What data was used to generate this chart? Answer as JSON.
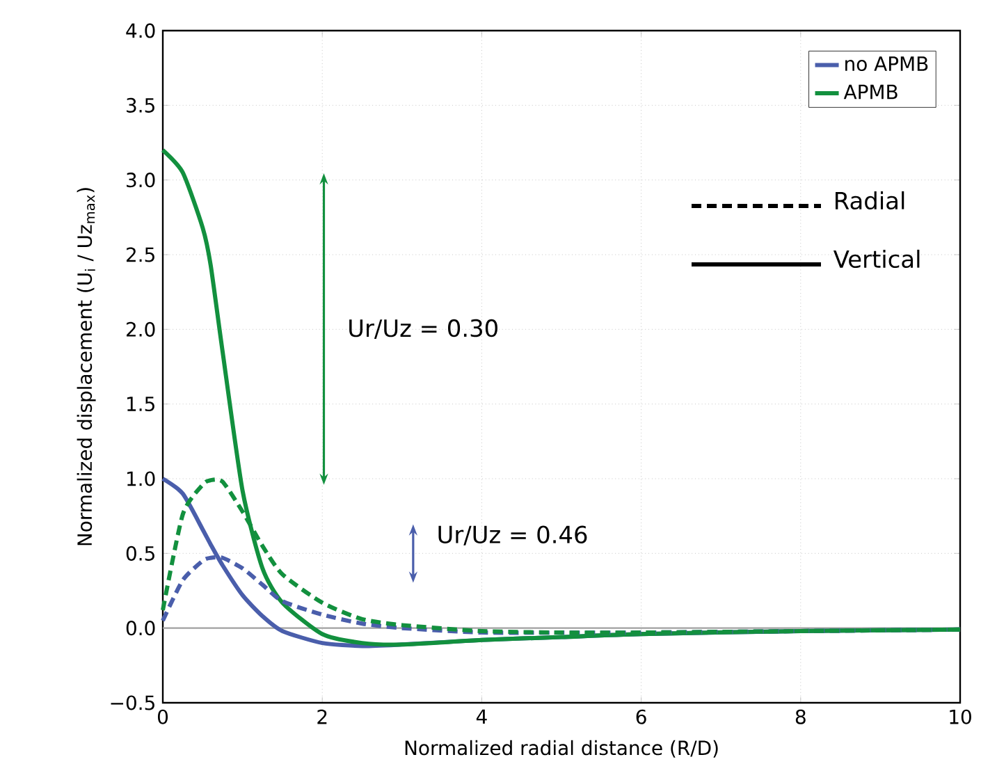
{
  "chart_data": {
    "type": "line",
    "xlabel": "Normalized radial distance (R/D)",
    "ylabel": "Normalized displacement (U$_{i}$ / Uz$_{max}$)",
    "x": [
      0,
      0.25,
      0.5,
      0.6,
      0.75,
      1,
      1.25,
      1.5,
      2,
      2.5,
      3,
      4,
      5,
      6,
      8,
      10
    ],
    "series": [
      {
        "name": "no APMB",
        "color": "#4a5eab",
        "line_style": "solid",
        "values": [
          1.0,
          0.9,
          0.66,
          0.56,
          0.42,
          0.22,
          0.08,
          -0.02,
          -0.1,
          -0.12,
          -0.11,
          -0.08,
          -0.06,
          -0.04,
          -0.02,
          -0.01
        ]
      },
      {
        "name": "APMB",
        "color": "#12903e",
        "line_style": "solid",
        "values": [
          3.2,
          3.05,
          2.68,
          2.43,
          1.85,
          0.92,
          0.4,
          0.17,
          -0.04,
          -0.1,
          -0.11,
          -0.08,
          -0.06,
          -0.04,
          -0.02,
          -0.01
        ]
      },
      {
        "color": "#4a5eab",
        "line_style": "dashed",
        "values": [
          0.05,
          0.32,
          0.45,
          0.47,
          0.47,
          0.4,
          0.29,
          0.18,
          0.09,
          0.03,
          0.0,
          -0.03,
          -0.03,
          -0.03,
          -0.02,
          -0.01
        ]
      },
      {
        "color": "#12903e",
        "line_style": "dashed",
        "values": [
          0.12,
          0.76,
          0.96,
          0.99,
          0.98,
          0.78,
          0.55,
          0.36,
          0.17,
          0.06,
          0.02,
          -0.02,
          -0.03,
          -0.03,
          -0.02,
          -0.01
        ]
      }
    ],
    "xlim": [
      0,
      10
    ],
    "ylim": [
      -0.5,
      4.0
    ],
    "xticks": [
      0,
      2,
      4,
      6,
      8,
      10
    ],
    "yticks": [
      {
        "value": -0.5,
        "label": "−0.5"
      },
      {
        "value": 0,
        "label": "0.0"
      },
      {
        "value": 0.5,
        "label": "0.5"
      },
      {
        "value": 1,
        "label": "1.0"
      },
      {
        "value": 1.5,
        "label": "1.5"
      },
      {
        "value": 2,
        "label": "2.0"
      },
      {
        "value": 2.5,
        "label": "2.5"
      },
      {
        "value": 3,
        "label": "3.0"
      },
      {
        "value": 3.5,
        "label": "3.5"
      },
      {
        "value": 4,
        "label": "4.0"
      }
    ],
    "ref_lines": [
      {
        "axis": "y",
        "value": 0,
        "color": "#a0a0a0"
      }
    ],
    "annotations": [
      "Ur/Uz = 0.30",
      "Ur/Uz = 0.46",
      "Radial",
      "Vertical"
    ],
    "grid": true,
    "legend": "top right"
  }
}
